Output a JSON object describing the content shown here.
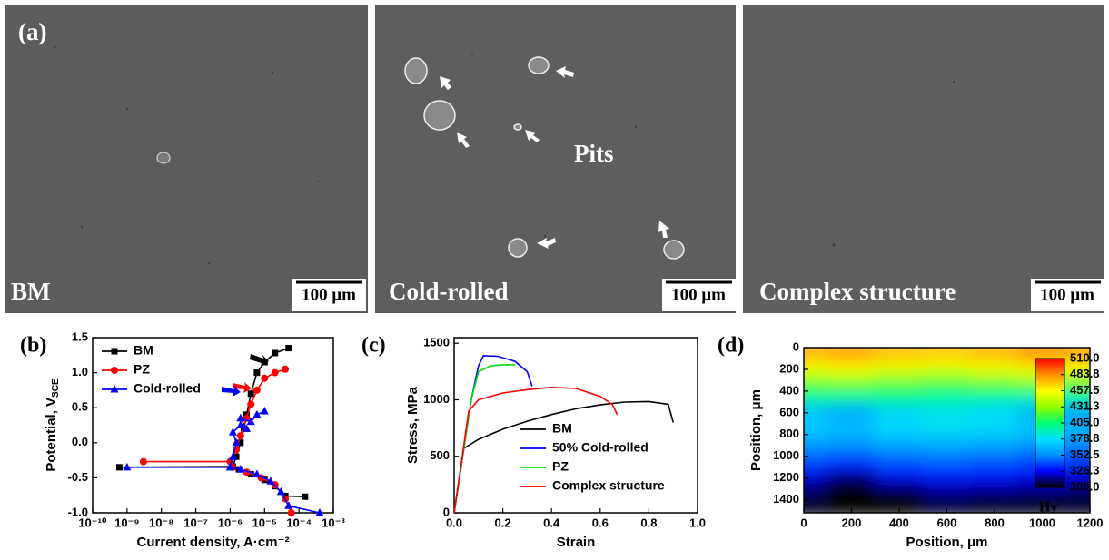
{
  "figure_a": {
    "label": "(a)",
    "panels": [
      {
        "caption": "BM",
        "scale_bar": "100 μm"
      },
      {
        "caption": "Cold-rolled",
        "scale_bar": "100 μm",
        "annotation": "Pits"
      },
      {
        "caption": "Complex structure",
        "scale_bar": "100 μm"
      }
    ]
  },
  "chart_data": [
    {
      "type": "line",
      "panel_label": "(b)",
      "xlog": true,
      "xlabel": "Current density, A·cm⁻²",
      "ylabel": "Potential, V",
      "ylabel_sub": "SCE",
      "xlim": [
        1e-10,
        0.001
      ],
      "xticks": [
        {
          "value": 1e-10,
          "label": "10⁻¹⁰"
        },
        {
          "value": 1e-09,
          "label": "10⁻⁹"
        },
        {
          "value": 1e-08,
          "label": "10⁻⁸"
        },
        {
          "value": 1e-07,
          "label": "10⁻⁷"
        },
        {
          "value": 1e-06,
          "label": "10⁻⁶"
        },
        {
          "value": 1e-05,
          "label": "10⁻⁵"
        },
        {
          "value": 0.0001,
          "label": "10⁻⁴"
        },
        {
          "value": 0.001,
          "label": "10⁻³"
        }
      ],
      "ylim": [
        -1,
        1.5
      ],
      "yticks": [
        {
          "value": -1,
          "label": "-1.0"
        },
        -0.5,
        {
          "value": 0,
          "label": "0.0"
        },
        0.5,
        {
          "value": 1,
          "label": "1.0"
        },
        1.5
      ],
      "legend": "upper left",
      "series": [
        {
          "name": "BM",
          "color": "#000000",
          "marker": "square",
          "x": [
            0.00015,
            4e-05,
            2e-05,
            1e-05,
            4e-06,
            1.8e-06,
            1.2e-06,
            1.5e-06,
            2e-06,
            2.5e-06,
            3e-06,
            4e-06,
            6e-06,
            1e-05,
            2e-05,
            5e-05,
            null,
            6e-10,
            1.2e-06
          ],
          "values": [
            -0.77,
            -0.76,
            -0.62,
            -0.53,
            -0.45,
            -0.38,
            -0.34,
            -0.2,
            0.0,
            0.2,
            0.4,
            0.7,
            1.0,
            1.15,
            1.28,
            1.35,
            null,
            -0.35,
            -0.34
          ]
        },
        {
          "name": "PZ",
          "color": "#ff0000",
          "marker": "circle",
          "x": [
            6e-05,
            4e-05,
            2e-05,
            8e-06,
            3e-06,
            1.2e-06,
            1e-06,
            1.5e-06,
            2e-06,
            3e-06,
            4e-06,
            6e-06,
            1e-05,
            2e-05,
            4e-05,
            null,
            3e-09,
            1e-06
          ],
          "values": [
            -1.0,
            -0.8,
            -0.6,
            -0.5,
            -0.42,
            -0.35,
            -0.27,
            -0.1,
            0.1,
            0.35,
            0.55,
            0.75,
            0.92,
            1.0,
            1.05,
            null,
            -0.27,
            -0.27
          ]
        },
        {
          "name": "Cold-rolled",
          "color": "#0000ff",
          "marker": "triangle",
          "x": [
            0.0004,
            5e-05,
            3e-05,
            1.5e-05,
            6e-06,
            2e-06,
            1e-06,
            1.2e-06,
            1.5e-06,
            1.2e-06,
            2e-06,
            3e-06,
            2e-06,
            4e-06,
            6e-06,
            1e-05,
            null,
            1e-09,
            1e-06
          ],
          "values": [
            -1.0,
            -0.9,
            -0.7,
            -0.55,
            -0.45,
            -0.38,
            -0.35,
            -0.2,
            0.0,
            0.15,
            0.25,
            0.2,
            0.35,
            0.3,
            0.4,
            0.45,
            null,
            -0.35,
            -0.35
          ]
        }
      ]
    },
    {
      "type": "line",
      "panel_label": "(c)",
      "xlabel": "Strain",
      "ylabel": "Stress, MPa",
      "xlim": [
        0,
        1
      ],
      "xticks": [
        {
          "value": 0,
          "label": "0.0"
        },
        0.2,
        0.4,
        0.6,
        0.8,
        {
          "value": 1,
          "label": "1.0"
        }
      ],
      "ylim": [
        0,
        1550
      ],
      "yticks": [
        0,
        500,
        1000,
        1500
      ],
      "legend": "lower right",
      "series": [
        {
          "name": "BM",
          "color": "#000000",
          "x": [
            0,
            0.04,
            0.1,
            0.2,
            0.3,
            0.4,
            0.5,
            0.6,
            0.7,
            0.8,
            0.88,
            0.9
          ],
          "values": [
            0,
            570,
            650,
            740,
            810,
            870,
            920,
            955,
            980,
            985,
            960,
            800
          ]
        },
        {
          "name": "50% Cold-rolled",
          "color": "#0000ff",
          "x": [
            0,
            0.07,
            0.1,
            0.12,
            0.18,
            0.25,
            0.3,
            0.32
          ],
          "values": [
            0,
            1000,
            1300,
            1390,
            1385,
            1340,
            1250,
            1120
          ]
        },
        {
          "name": "PZ",
          "color": "#00e000",
          "x": [
            0,
            0.07,
            0.1,
            0.15,
            0.2,
            0.25
          ],
          "values": [
            0,
            1000,
            1250,
            1300,
            1310,
            1310
          ]
        },
        {
          "name": "Complex structure",
          "color": "#ff0000",
          "x": [
            0,
            0.06,
            0.1,
            0.2,
            0.3,
            0.4,
            0.5,
            0.6,
            0.65,
            0.67
          ],
          "values": [
            0,
            900,
            1000,
            1060,
            1090,
            1110,
            1100,
            1030,
            960,
            870
          ]
        }
      ]
    },
    {
      "type": "heatmap",
      "panel_label": "(d)",
      "xlabel": "Position, μm",
      "ylabel": "Position, μm",
      "yinvert": true,
      "xlim": [
        0,
        1200
      ],
      "xticks": [
        0,
        200,
        400,
        600,
        800,
        1000,
        1200
      ],
      "ylim": [
        0,
        1520
      ],
      "yticks": [
        0,
        200,
        400,
        600,
        800,
        1000,
        1200,
        1400
      ],
      "x": [
        0,
        200,
        400,
        600,
        800,
        1000,
        1200
      ],
      "y": [
        0,
        100,
        200,
        300,
        400,
        500,
        600,
        700,
        800,
        900,
        1000,
        1100,
        1200,
        1300,
        1400,
        1500
      ],
      "z": [
        [
          480,
          485,
          478,
          475,
          480,
          488,
          482
        ],
        [
          470,
          475,
          468,
          465,
          470,
          478,
          475
        ],
        [
          455,
          458,
          452,
          450,
          455,
          460,
          458
        ],
        [
          430,
          432,
          428,
          425,
          430,
          435,
          432
        ],
        [
          410,
          412,
          408,
          405,
          408,
          412,
          410
        ],
        [
          392,
          390,
          395,
          393,
          390,
          388,
          392
        ],
        [
          365,
          355,
          372,
          378,
          375,
          360,
          352
        ],
        [
          375,
          368,
          380,
          385,
          382,
          370,
          365
        ],
        [
          368,
          365,
          372,
          375,
          372,
          368,
          362
        ],
        [
          358,
          355,
          360,
          362,
          360,
          355,
          352
        ],
        [
          345,
          342,
          348,
          350,
          348,
          344,
          340
        ],
        [
          335,
          330,
          338,
          340,
          338,
          334,
          332
        ],
        [
          322,
          310,
          325,
          330,
          328,
          325,
          322
        ],
        [
          312,
          298,
          308,
          318,
          316,
          314,
          312
        ],
        [
          305,
          298,
          300,
          308,
          306,
          305,
          305
        ],
        [
          302,
          296,
          300,
          305,
          304,
          303,
          303
        ]
      ],
      "colorbar": {
        "label": "Hv",
        "ticks": [
          {
            "value": 300,
            "label": "300.0"
          },
          326.3,
          352.5,
          378.8,
          {
            "value": 405,
            "label": "405.0"
          },
          431.3,
          457.5,
          483.8,
          {
            "value": 510,
            "label": "510.0"
          }
        ],
        "colors": [
          "#000000",
          "#0000ff",
          "#0090ff",
          "#00e0ff",
          "#00ff70",
          "#90ff00",
          "#ffff00",
          "#ff9000",
          "#ff0000"
        ]
      }
    }
  ]
}
